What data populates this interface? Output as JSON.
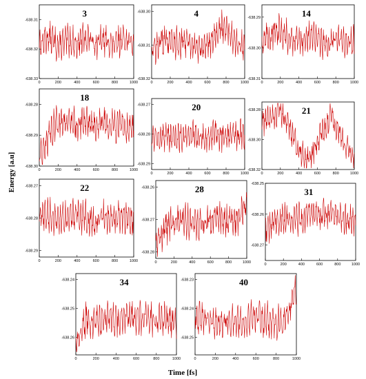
{
  "figure": {
    "xlabel": "Time [fs]",
    "ylabel": "Energy [a.u]",
    "line_color": "#cc0000"
  },
  "chart_data": [
    {
      "type": "line",
      "title": "3",
      "xlim": [
        0,
        1000
      ],
      "ylim": [
        -638.33,
        -638.305
      ],
      "xticks": [
        "0",
        "200",
        "400",
        "600",
        "800",
        "1000"
      ],
      "yticks": [
        "-638.31",
        "-638.32",
        "-638.33"
      ],
      "ytick_values": [
        -638.31,
        -638.32,
        -638.33
      ],
      "series": [
        {
          "x": [
            0,
            100,
            200,
            300,
            400,
            500,
            600,
            700,
            800,
            900,
            1000
          ],
          "y": [
            -638.318,
            -638.316,
            -638.319,
            -638.317,
            -638.318,
            -638.316,
            -638.318,
            -638.317,
            -638.319,
            -638.316,
            -638.319
          ]
        }
      ]
    },
    {
      "type": "line",
      "title": "4",
      "xlim": [
        0,
        1000
      ],
      "ylim": [
        -638.32,
        -638.298
      ],
      "xticks": [
        "0",
        "200",
        "400",
        "600",
        "800",
        "1000"
      ],
      "yticks": [
        "-638.30",
        "-638.31",
        "-638.32"
      ],
      "ytick_values": [
        -638.3,
        -638.31,
        -638.32
      ],
      "series": [
        {
          "x": [
            0,
            100,
            200,
            300,
            400,
            500,
            600,
            700,
            800,
            900,
            1000
          ],
          "y": [
            -638.312,
            -638.309,
            -638.308,
            -638.31,
            -638.309,
            -638.311,
            -638.31,
            -638.306,
            -638.304,
            -638.31,
            -638.311
          ]
        }
      ]
    },
    {
      "type": "line",
      "title": "14",
      "xlim": [
        0,
        1000
      ],
      "ylim": [
        -638.31,
        -638.286
      ],
      "xticks": [
        "0",
        "200",
        "400",
        "600",
        "800",
        "1000"
      ],
      "yticks": [
        "-638.29",
        "-638.30",
        "-638.31"
      ],
      "ytick_values": [
        -638.29,
        -638.3,
        -638.31
      ],
      "series": [
        {
          "x": [
            0,
            100,
            200,
            300,
            400,
            500,
            600,
            700,
            800,
            900,
            1000
          ],
          "y": [
            -638.298,
            -638.296,
            -638.294,
            -638.297,
            -638.298,
            -638.296,
            -638.297,
            -638.299,
            -638.297,
            -638.298,
            -638.298
          ]
        }
      ]
    },
    {
      "type": "line",
      "title": "18",
      "xlim": [
        0,
        1000
      ],
      "ylim": [
        -638.3,
        -638.275
      ],
      "xticks": [
        "0",
        "200",
        "400",
        "600",
        "800",
        "1000"
      ],
      "yticks": [
        "-638.28",
        "-638.29",
        "-638.30"
      ],
      "ytick_values": [
        -638.28,
        -638.29,
        -638.3
      ],
      "series": [
        {
          "x": [
            0,
            50,
            100,
            150,
            200,
            300,
            400,
            500,
            600,
            700,
            800,
            900,
            1000
          ],
          "y": [
            -638.298,
            -638.294,
            -638.29,
            -638.287,
            -638.286,
            -638.285,
            -638.287,
            -638.285,
            -638.287,
            -638.286,
            -638.287,
            -638.287,
            -638.288
          ]
        }
      ]
    },
    {
      "type": "line",
      "title": "20",
      "xlim": [
        0,
        1000
      ],
      "ylim": [
        -638.292,
        -638.268
      ],
      "xticks": [
        "0",
        "200",
        "400",
        "600",
        "800",
        "1000"
      ],
      "yticks": [
        "-638.27",
        "-638.28",
        "-638.29"
      ],
      "ytick_values": [
        -638.27,
        -638.28,
        -638.29
      ],
      "series": [
        {
          "x": [
            0,
            100,
            200,
            300,
            400,
            500,
            600,
            700,
            800,
            900,
            1000
          ],
          "y": [
            -638.281,
            -638.28,
            -638.282,
            -638.281,
            -638.28,
            -638.281,
            -638.282,
            -638.28,
            -638.281,
            -638.281,
            -638.28
          ]
        }
      ]
    },
    {
      "type": "line",
      "title": "21",
      "xlim": [
        0,
        1000
      ],
      "ylim": [
        -638.32,
        -638.275
      ],
      "xticks": [
        "0",
        "200",
        "400",
        "600",
        "800",
        "1000"
      ],
      "yticks": [
        "-638.28",
        "-638.30",
        "-638.32"
      ],
      "ytick_values": [
        -638.28,
        -638.3,
        -638.32
      ],
      "series": [
        {
          "x": [
            0,
            50,
            100,
            150,
            200,
            250,
            300,
            350,
            400,
            450,
            500,
            550,
            600,
            650,
            700,
            750,
            800,
            850,
            900,
            950,
            1000
          ],
          "y": [
            -638.287,
            -638.288,
            -638.286,
            -638.283,
            -638.281,
            -638.285,
            -638.292,
            -638.3,
            -638.306,
            -638.311,
            -638.313,
            -638.309,
            -638.302,
            -638.296,
            -638.294,
            -638.282,
            -638.293,
            -638.296,
            -638.305,
            -638.309,
            -638.312
          ]
        }
      ]
    },
    {
      "type": "line",
      "title": "22",
      "xlim": [
        0,
        1000
      ],
      "ylim": [
        -638.292,
        -638.268
      ],
      "xticks": [
        "0",
        "200",
        "400",
        "600",
        "800",
        "1000"
      ],
      "yticks": [
        "-638.27",
        "-638.28",
        "-638.29"
      ],
      "ytick_values": [
        -638.27,
        -638.28,
        -638.29
      ],
      "series": [
        {
          "x": [
            0,
            100,
            200,
            300,
            400,
            500,
            600,
            700,
            800,
            900,
            1000
          ],
          "y": [
            -638.28,
            -638.279,
            -638.281,
            -638.28,
            -638.279,
            -638.28,
            -638.281,
            -638.279,
            -638.28,
            -638.28,
            -638.281
          ]
        }
      ]
    },
    {
      "type": "line",
      "title": "28",
      "xlim": [
        0,
        1000
      ],
      "ylim": [
        -638.282,
        -638.258
      ],
      "xticks": [
        "0",
        "200",
        "400",
        "600",
        "800",
        "1000"
      ],
      "yticks": [
        "-638.26",
        "-638.27",
        "-638.28"
      ],
      "ytick_values": [
        -638.26,
        -638.27,
        -638.28
      ],
      "series": [
        {
          "x": [
            0,
            100,
            200,
            300,
            400,
            500,
            600,
            700,
            800,
            900,
            1000
          ],
          "y": [
            -638.277,
            -638.273,
            -638.271,
            -638.27,
            -638.271,
            -638.272,
            -638.27,
            -638.269,
            -638.271,
            -638.27,
            -638.265
          ]
        }
      ]
    },
    {
      "type": "line",
      "title": "31",
      "xlim": [
        0,
        1000
      ],
      "ylim": [
        -638.275,
        -638.25
      ],
      "xticks": [
        "0",
        "200",
        "400",
        "600",
        "800",
        "1000"
      ],
      "yticks": [
        "-638.25",
        "-638.26",
        "-638.27"
      ],
      "ytick_values": [
        -638.25,
        -638.26,
        -638.27
      ],
      "series": [
        {
          "x": [
            0,
            100,
            200,
            300,
            400,
            500,
            600,
            700,
            800,
            900,
            1000
          ],
          "y": [
            -638.265,
            -638.263,
            -638.262,
            -638.261,
            -638.262,
            -638.26,
            -638.261,
            -638.26,
            -638.261,
            -638.262,
            -638.262
          ]
        }
      ]
    },
    {
      "type": "line",
      "title": "34",
      "xlim": [
        0,
        1000
      ],
      "ylim": [
        -638.266,
        -638.238
      ],
      "xticks": [
        "0",
        "200",
        "400",
        "600",
        "800",
        "1000"
      ],
      "yticks": [
        "-638.24",
        "-638.25",
        "-638.26"
      ],
      "ytick_values": [
        -638.24,
        -638.25,
        -638.26
      ],
      "series": [
        {
          "x": [
            0,
            100,
            200,
            300,
            400,
            500,
            600,
            700,
            800,
            900,
            1000
          ],
          "y": [
            -638.262,
            -638.254,
            -638.255,
            -638.253,
            -638.254,
            -638.253,
            -638.254,
            -638.253,
            -638.254,
            -638.254,
            -638.255
          ]
        }
      ]
    },
    {
      "type": "line",
      "title": "40",
      "xlim": [
        0,
        1000
      ],
      "ylim": [
        -638.256,
        -638.228
      ],
      "xticks": [
        "0",
        "200",
        "400",
        "600",
        "800",
        "1000"
      ],
      "yticks": [
        "-638.23",
        "-638.24",
        "-638.25"
      ],
      "ytick_values": [
        -638.23,
        -638.24,
        -638.25
      ],
      "series": [
        {
          "x": [
            0,
            100,
            200,
            300,
            400,
            500,
            600,
            700,
            800,
            900,
            1000
          ],
          "y": [
            -638.243,
            -638.244,
            -638.245,
            -638.244,
            -638.245,
            -638.244,
            -638.243,
            -638.244,
            -638.245,
            -638.244,
            -638.232
          ]
        }
      ]
    }
  ]
}
